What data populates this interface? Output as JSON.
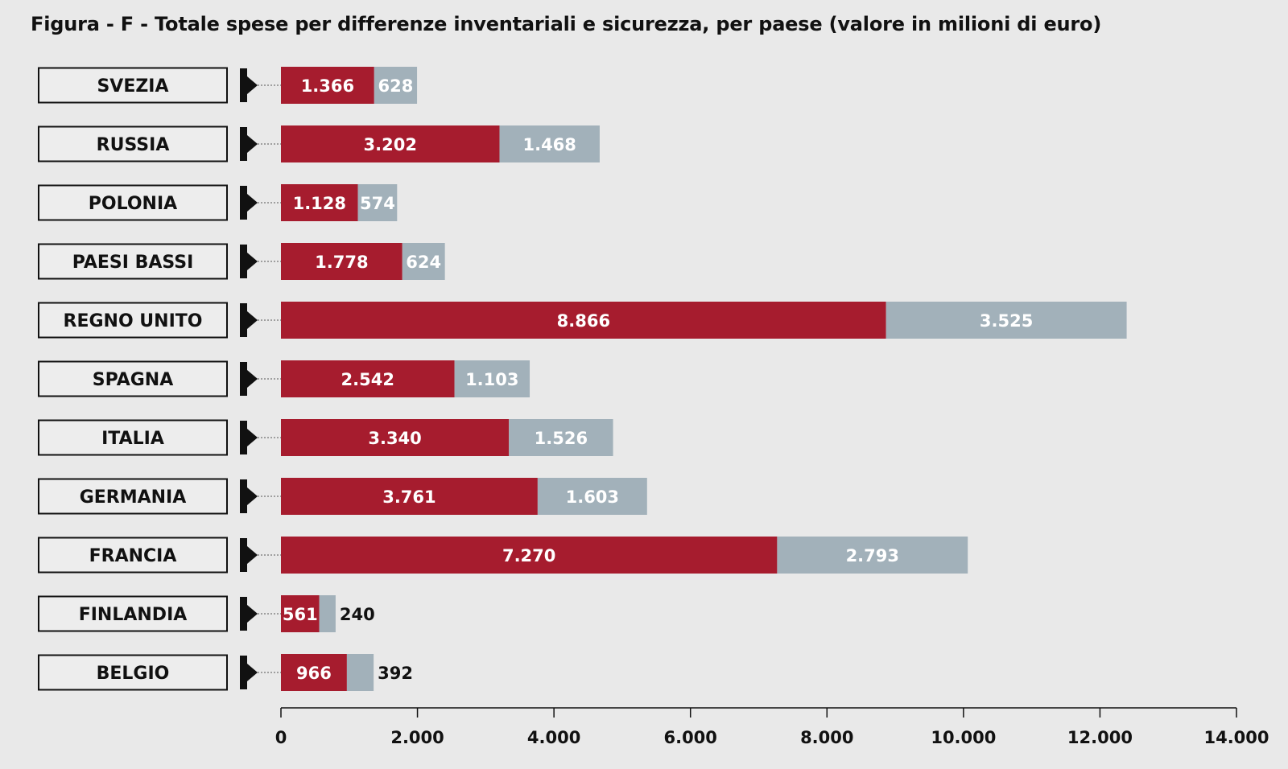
{
  "title": "Figura - F -  Totale spese per differenze inventariali e sicurezza, per paese (valore in milioni di euro)",
  "colors": {
    "background": "#e9e9e9",
    "series_1": "#a61c2e",
    "series_2": "#a2b1ba"
  },
  "chart_data": {
    "type": "bar",
    "orientation": "horizontal",
    "stacked": true,
    "title": "Figura - F -  Totale spese per differenze inventariali e sicurezza, per paese (valore in milioni di euro)",
    "categories": [
      "SVEZIA",
      "RUSSIA",
      "POLONIA",
      "PAESI BASSI",
      "REGNO UNITO",
      "SPAGNA",
      "ITALIA",
      "GERMANIA",
      "FRANCIA",
      "FINLANDIA",
      "BELGIO"
    ],
    "series": [
      {
        "values": [
          1366,
          3202,
          1128,
          1778,
          8866,
          2542,
          3340,
          3761,
          7270,
          561,
          966
        ],
        "labels": [
          "1.366",
          "3.202",
          "1.128",
          "1.778",
          "8.866",
          "2.542",
          "3.340",
          "3.761",
          "7.270",
          "561",
          "966"
        ]
      },
      {
        "values": [
          628,
          1468,
          574,
          624,
          3525,
          1103,
          1526,
          1603,
          2793,
          240,
          392
        ],
        "labels": [
          "628",
          "1.468",
          "574",
          "624",
          "3.525",
          "1.103",
          "1.526",
          "1.603",
          "2.793",
          "240",
          "392"
        ]
      }
    ],
    "xlim": [
      0,
      14000
    ],
    "xticks": [
      0,
      2000,
      4000,
      6000,
      8000,
      10000,
      12000,
      14000
    ],
    "xtick_labels": [
      "0",
      "2.000",
      "4.000",
      "6.000",
      "8.000",
      "10.000",
      "12.000",
      "14.000"
    ],
    "xlabel": "",
    "ylabel": "",
    "grid": false,
    "legend": "none"
  }
}
